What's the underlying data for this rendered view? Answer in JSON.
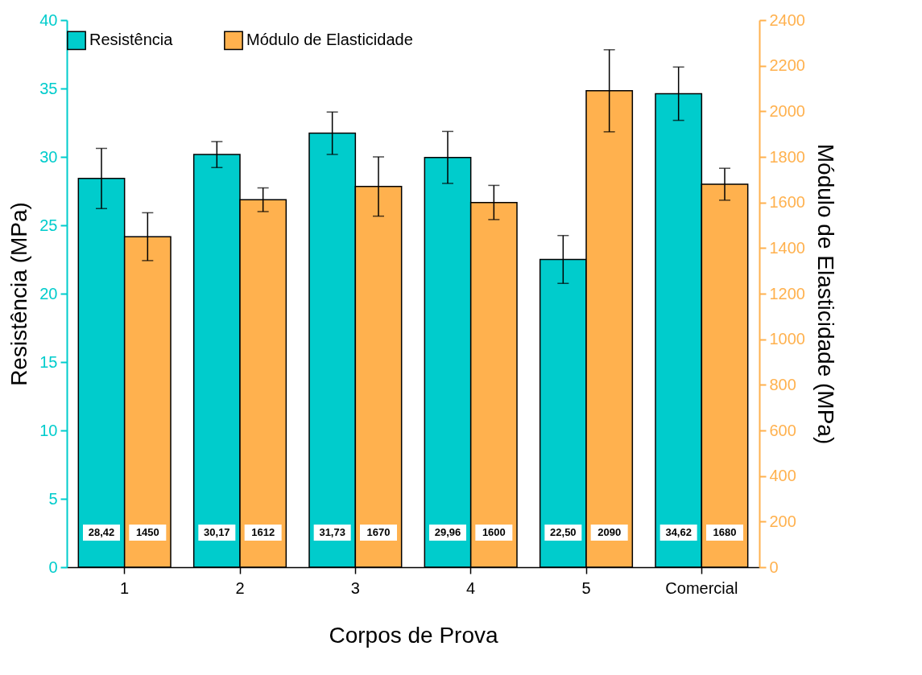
{
  "chart_data": {
    "type": "bar",
    "xlabel": "Corpos de Prova",
    "ylabel": "Resistência (MPa)",
    "y2label": "Módulo de Elasticidade (MPa)",
    "categories": [
      "1",
      "2",
      "3",
      "4",
      "5",
      "Comercial"
    ],
    "series": [
      {
        "name": "Resistência",
        "color": "#00cccc",
        "values": [
          28.42,
          30.17,
          31.73,
          29.96,
          22.5,
          34.62
        ],
        "errors": [
          2.2,
          0.95,
          1.55,
          1.9,
          1.75,
          1.95
        ],
        "value_labels": [
          "28,42",
          "30,17",
          "31,73",
          "29,96",
          "22,50",
          "34,62"
        ]
      },
      {
        "name": "Módulo de Elasticidade",
        "color": "#ffb14e",
        "axis": "y2",
        "values": [
          1450,
          1612,
          1670,
          1600,
          2090,
          1680
        ],
        "errors": [
          105,
          52,
          130,
          75,
          180,
          70
        ],
        "value_labels": [
          "1450",
          "1612",
          "1670",
          "1600",
          "2090",
          "1680"
        ]
      }
    ],
    "ylim": [
      0,
      40
    ],
    "yticks": [
      0,
      5,
      10,
      15,
      20,
      25,
      30,
      35,
      40
    ],
    "y2lim": [
      0,
      2400
    ],
    "y2ticks": [
      0,
      200,
      400,
      600,
      800,
      1000,
      1200,
      1400,
      1600,
      1800,
      2000,
      2200,
      2400
    ],
    "legend": "top"
  }
}
